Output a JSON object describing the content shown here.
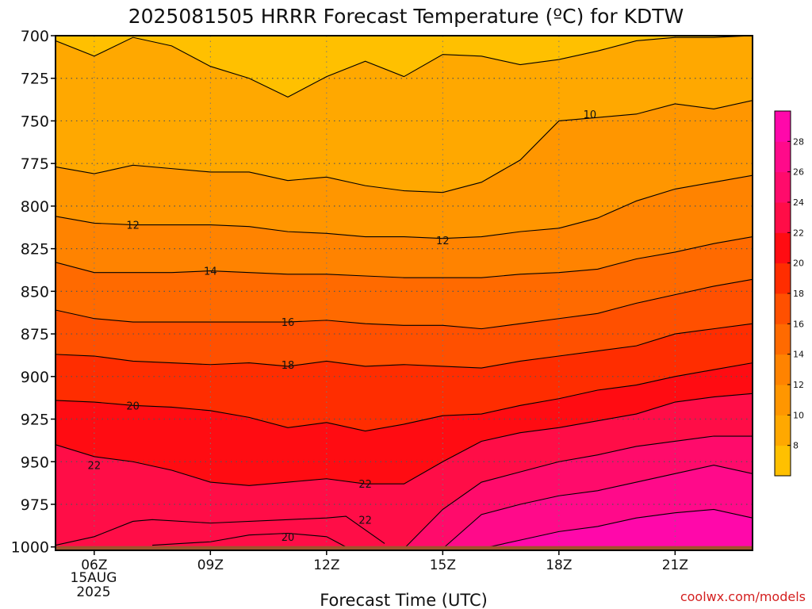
{
  "chart_data": {
    "type": "contour",
    "title": "2025081505 HRRR Forecast Temperature (ºC) for KDTW",
    "xlabel": "Forecast Time (UTC)",
    "ylabel": "",
    "credit": "coolwx.com/models",
    "x_ticks": [
      "06Z",
      "09Z",
      "12Z",
      "15Z",
      "18Z",
      "21Z"
    ],
    "x_tick_hours": [
      6,
      9,
      12,
      15,
      18,
      21
    ],
    "x_date_line1": "15AUG",
    "x_date_line2": "2025",
    "xlim": [
      5,
      23
    ],
    "y_ticks": [
      700,
      725,
      750,
      775,
      800,
      825,
      850,
      875,
      900,
      925,
      950,
      975,
      1000
    ],
    "ylim": [
      1002,
      700
    ],
    "colorbar_ticks": [
      8,
      10,
      12,
      14,
      16,
      18,
      20,
      22,
      24,
      26,
      28
    ],
    "colorbar_levels": [
      6,
      8,
      10,
      12,
      14,
      16,
      18,
      20,
      22,
      24,
      26,
      28,
      30
    ],
    "colorbar_colors": [
      "#ffc000",
      "#ffa800",
      "#ff9600",
      "#ff8300",
      "#ff6a00",
      "#ff5000",
      "#ff2d00",
      "#ff0c12",
      "#ff0d47",
      "#ff0b6b",
      "#ff0a8a",
      "#ff08aa"
    ],
    "ground_color": "#a0522d",
    "isotherms": [
      {
        "value": 10,
        "hours": [
          5,
          6,
          7,
          8,
          9,
          10,
          11,
          12,
          13,
          14,
          15,
          16,
          17,
          18,
          19,
          20,
          21,
          22,
          23
        ],
        "pressure": [
          777,
          781,
          776,
          778,
          780,
          780,
          785,
          783,
          788,
          791,
          792,
          786,
          773,
          750,
          748,
          746,
          740,
          743,
          738
        ]
      },
      {
        "value": 12,
        "hours": [
          5,
          6,
          7,
          8,
          9,
          10,
          11,
          12,
          13,
          14,
          15,
          16,
          17,
          18,
          19,
          20,
          21,
          22,
          23
        ],
        "pressure": [
          806,
          810,
          811,
          811,
          811,
          812,
          815,
          816,
          818,
          818,
          819,
          818,
          815,
          813,
          807,
          797,
          790,
          786,
          782
        ]
      },
      {
        "value": 14,
        "hours": [
          5,
          6,
          7,
          8,
          9,
          10,
          11,
          12,
          13,
          14,
          15,
          16,
          17,
          18,
          19,
          20,
          21,
          22,
          23
        ],
        "pressure": [
          833,
          839,
          839,
          839,
          838,
          839,
          840,
          840,
          841,
          842,
          842,
          842,
          840,
          839,
          837,
          831,
          827,
          822,
          818
        ]
      },
      {
        "value": 16,
        "hours": [
          5,
          6,
          7,
          8,
          9,
          10,
          11,
          12,
          13,
          14,
          15,
          16,
          17,
          18,
          19,
          20,
          21,
          22,
          23
        ],
        "pressure": [
          861,
          866,
          868,
          868,
          868,
          868,
          868,
          867,
          869,
          870,
          870,
          872,
          869,
          866,
          863,
          857,
          852,
          847,
          843
        ]
      },
      {
        "value": 18,
        "hours": [
          5,
          6,
          7,
          8,
          9,
          10,
          11,
          12,
          13,
          14,
          15,
          16,
          17,
          18,
          19,
          20,
          21,
          22,
          23
        ],
        "pressure": [
          887,
          888,
          891,
          892,
          893,
          892,
          894,
          891,
          894,
          893,
          894,
          895,
          891,
          888,
          885,
          882,
          875,
          872,
          869
        ]
      },
      {
        "value": 20,
        "hours": [
          5,
          6,
          7,
          8,
          9,
          10,
          11,
          12,
          13,
          14,
          15,
          16,
          17,
          18,
          19,
          20,
          21,
          22,
          23
        ],
        "pressure": [
          914,
          915,
          917,
          918,
          920,
          924,
          930,
          927,
          932,
          928,
          923,
          922,
          917,
          913,
          908,
          905,
          900,
          896,
          892
        ]
      },
      {
        "value": 22,
        "hours": [
          5,
          6,
          7,
          8,
          9,
          10,
          11,
          12,
          13,
          14,
          15,
          16,
          17,
          18,
          19,
          20,
          21,
          22,
          23
        ],
        "pressure": [
          940,
          947,
          950,
          955,
          962,
          964,
          962,
          960,
          963,
          963,
          950,
          938,
          933,
          930,
          926,
          922,
          915,
          912,
          910
        ]
      },
      {
        "value": 24,
        "hours": [
          5,
          6,
          7,
          8,
          9,
          10,
          11,
          12,
          13,
          14,
          15,
          16,
          17,
          18,
          19,
          20,
          21,
          22,
          23
        ],
        "pressure": [
          1001,
          1001,
          1001,
          1001,
          1001,
          1001,
          1001,
          1001,
          1001,
          1001,
          978,
          962,
          956,
          950,
          946,
          941,
          938,
          935,
          935
        ]
      },
      {
        "value": 26,
        "hours": [
          5,
          6,
          7,
          8,
          9,
          10,
          11,
          12,
          13,
          14,
          15,
          16,
          17,
          18,
          19,
          20,
          21,
          22,
          23
        ],
        "pressure": [
          1001,
          1001,
          1001,
          1001,
          1001,
          1001,
          1001,
          1001,
          1001,
          1001,
          1001,
          981,
          975,
          970,
          967,
          962,
          957,
          952,
          957
        ]
      },
      {
        "value": 28,
        "hours": [
          5,
          6,
          7,
          8,
          9,
          10,
          11,
          12,
          13,
          14,
          15,
          16,
          17,
          18,
          19,
          20,
          21,
          22,
          23
        ],
        "pressure": [
          1001,
          1001,
          1001,
          1001,
          1001,
          1001,
          1001,
          1001,
          1001,
          1001,
          1001,
          1001,
          996,
          991,
          988,
          983,
          980,
          978,
          983
        ]
      },
      {
        "value": 8,
        "hours": [
          5,
          6,
          7,
          8,
          9,
          10,
          11,
          12,
          13,
          14,
          15,
          16,
          17,
          18,
          19,
          20,
          21,
          22,
          23
        ],
        "pressure": [
          703,
          712,
          701,
          706,
          718,
          725,
          736,
          724,
          715,
          724,
          711,
          712,
          717,
          714,
          709,
          703,
          701,
          701,
          700
        ]
      }
    ],
    "inversion_contours": [
      {
        "value": 22,
        "hours": [
          5,
          6,
          7,
          7.5,
          9,
          11,
          12,
          12.5,
          13.5
        ],
        "pressure": [
          999,
          994,
          985,
          984,
          986,
          984,
          983,
          982,
          998
        ]
      },
      {
        "value": 20,
        "hours": [
          7.5,
          9,
          10,
          11,
          12,
          12.5
        ],
        "pressure": [
          999,
          997,
          993,
          992,
          994,
          1000
        ]
      }
    ],
    "contour_labels": [
      {
        "text": "10",
        "hour": 18.8,
        "pressure": 746
      },
      {
        "text": "12",
        "hour": 7.0,
        "pressure": 811
      },
      {
        "text": "12",
        "hour": 15.0,
        "pressure": 820
      },
      {
        "text": "14",
        "hour": 9.0,
        "pressure": 838
      },
      {
        "text": "16",
        "hour": 11.0,
        "pressure": 868
      },
      {
        "text": "18",
        "hour": 11.0,
        "pressure": 893
      },
      {
        "text": "20",
        "hour": 7.0,
        "pressure": 917
      },
      {
        "text": "22",
        "hour": 6.0,
        "pressure": 952
      },
      {
        "text": "22",
        "hour": 13.0,
        "pressure": 963
      },
      {
        "text": "22",
        "hour": 13.0,
        "pressure": 984
      },
      {
        "text": "20",
        "hour": 11.0,
        "pressure": 994
      }
    ]
  }
}
